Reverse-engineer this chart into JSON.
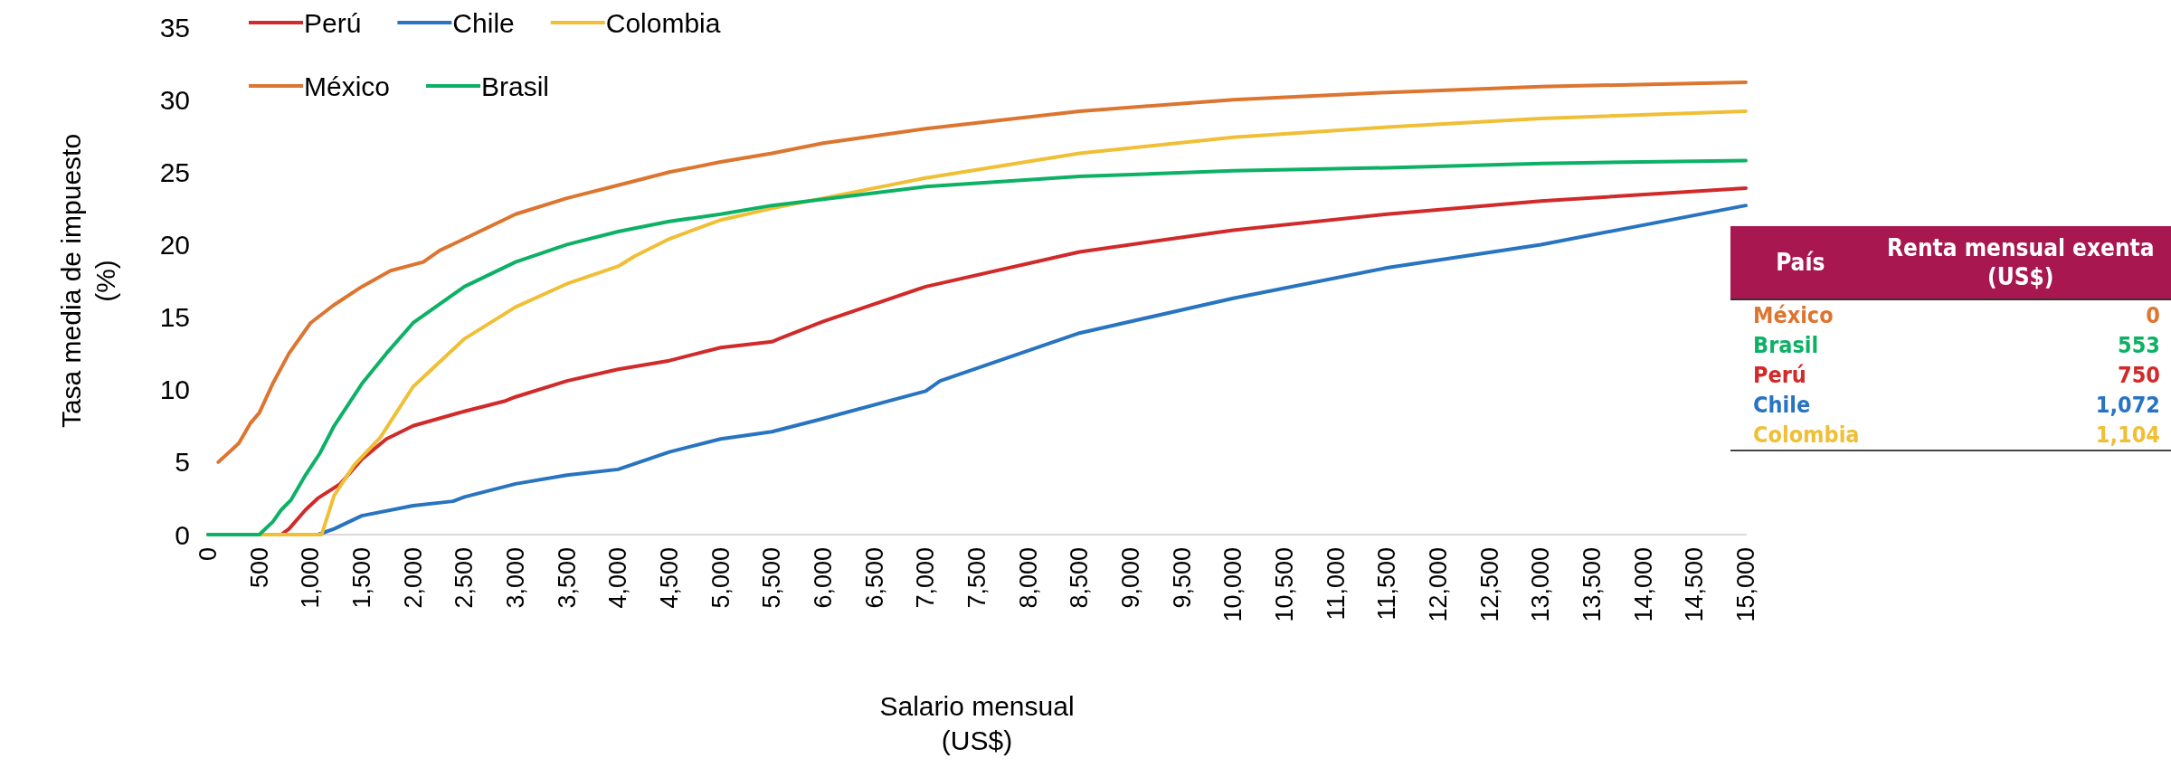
{
  "chart_data": [
    {
      "type": "line",
      "xlabel": "Salario mensual (US$)",
      "ylabel": "Tasa media de impuesto (%)",
      "legend": "top left",
      "grid": false,
      "marker": "none",
      "line_style": "solid",
      "xlim": [
        0,
        15000
      ],
      "ylim": [
        0,
        35
      ],
      "yticks": [
        0,
        5,
        10,
        15,
        20,
        25,
        30,
        35
      ],
      "xticks": [
        0,
        500,
        {
          "value": 1000,
          "label": "1,000"
        },
        {
          "value": 1500,
          "label": "1,500"
        },
        {
          "value": 2000,
          "label": "2,000"
        },
        {
          "value": 2500,
          "label": "2,500"
        },
        {
          "value": 3000,
          "label": "3,000"
        },
        {
          "value": 3500,
          "label": "3,500"
        },
        {
          "value": 4000,
          "label": "4,000"
        },
        {
          "value": 4500,
          "label": "4,500"
        },
        {
          "value": 5000,
          "label": "5,000"
        },
        {
          "value": 5500,
          "label": "5,500"
        },
        {
          "value": 6000,
          "label": "6,000"
        },
        {
          "value": 6500,
          "label": "6,500"
        },
        {
          "value": 7000,
          "label": "7,000"
        },
        {
          "value": 7500,
          "label": "7,500"
        },
        {
          "value": 8000,
          "label": "8,000"
        },
        {
          "value": 8500,
          "label": "8,500"
        },
        {
          "value": 9000,
          "label": "9,000"
        },
        {
          "value": 9500,
          "label": "9,500"
        },
        {
          "value": 10000,
          "label": "10,000"
        },
        {
          "value": 10500,
          "label": "10,500"
        },
        {
          "value": 11000,
          "label": "11,000"
        },
        {
          "value": 11500,
          "label": "11,500"
        },
        {
          "value": 12000,
          "label": "12,000"
        },
        {
          "value": 12500,
          "label": "12,500"
        },
        {
          "value": 13000,
          "label": "13,000"
        },
        {
          "value": 13500,
          "label": "13,500"
        },
        {
          "value": 14000,
          "label": "14,000"
        },
        {
          "value": 14500,
          "label": "14,500"
        },
        {
          "value": 15000,
          "label": "15,000"
        }
      ],
      "series": [
        {
          "name": "Perú",
          "color": "#d02a2a",
          "x": [
            0,
            500,
            713,
            790,
            950,
            1070,
            1290,
            1500,
            1740,
            2000,
            2500,
            2890,
            3000,
            3500,
            4000,
            4500,
            5000,
            5500,
            5600,
            6000,
            7000,
            8500,
            10000,
            11500,
            13000,
            15000
          ],
          "values": [
            0,
            0,
            0,
            0.4,
            1.7,
            2.5,
            3.5,
            5.2,
            6.6,
            7.5,
            8.5,
            9.2,
            9.5,
            10.6,
            11.4,
            12.0,
            12.9,
            13.3,
            13.6,
            14.7,
            17.1,
            19.5,
            21.0,
            22.1,
            23.0,
            23.9
          ]
        },
        {
          "name": "Chile",
          "color": "#2874c0",
          "x": [
            1000,
            1072,
            1230,
            1500,
            2000,
            2390,
            2500,
            3000,
            3500,
            4000,
            4500,
            5000,
            5500,
            6000,
            7000,
            7140,
            8500,
            10000,
            11500,
            13000,
            15000
          ],
          "values": [
            0,
            0,
            0.4,
            1.3,
            2.0,
            2.3,
            2.6,
            3.5,
            4.1,
            4.5,
            5.7,
            6.6,
            7.1,
            8.0,
            9.9,
            10.6,
            13.9,
            16.3,
            18.4,
            20.0,
            22.7
          ]
        },
        {
          "name": "Colombia",
          "color": "#f0bf36",
          "x": [
            0,
            500,
            1000,
            1108,
            1230,
            1425,
            1680,
            2000,
            2500,
            3000,
            3500,
            4000,
            4160,
            4500,
            5000,
            5500,
            7000,
            8500,
            10000,
            11500,
            13000,
            15000
          ],
          "values": [
            0,
            0,
            0,
            0,
            2.7,
            4.8,
            6.7,
            10.2,
            13.5,
            15.7,
            17.3,
            18.5,
            19.2,
            20.4,
            21.7,
            22.5,
            24.6,
            26.3,
            27.4,
            28.1,
            28.7,
            29.2
          ]
        },
        {
          "name": "México",
          "color": "#dc7530",
          "x": [
            100,
            300,
            415,
            500,
            630,
            790,
            1000,
            1220,
            1500,
            1780,
            2100,
            2260,
            2500,
            3000,
            3500,
            4000,
            4500,
            5000,
            5500,
            6000,
            6500,
            7000,
            8500,
            10000,
            11500,
            13000,
            15000
          ],
          "values": [
            5.0,
            6.3,
            7.7,
            8.4,
            10.4,
            12.5,
            14.6,
            15.8,
            17.1,
            18.2,
            18.8,
            19.6,
            20.4,
            22.1,
            23.2,
            24.1,
            25.0,
            25.7,
            26.3,
            27.0,
            27.5,
            28.0,
            29.2,
            30.0,
            30.5,
            30.9,
            31.2
          ]
        },
        {
          "name": "Brasil",
          "color": "#0db166",
          "x": [
            0,
            500,
            633,
            713,
            810,
            950,
            1090,
            1230,
            1500,
            1740,
            2000,
            2500,
            3000,
            3500,
            4000,
            4500,
            5000,
            5500,
            7000,
            8500,
            10000,
            11500,
            13000,
            15000
          ],
          "values": [
            0,
            0,
            0.9,
            1.7,
            2.4,
            4.1,
            5.6,
            7.5,
            10.4,
            12.5,
            14.6,
            17.1,
            18.8,
            20.0,
            20.9,
            21.6,
            22.1,
            22.7,
            24.0,
            24.7,
            25.1,
            25.3,
            25.6,
            25.8
          ]
        }
      ]
    },
    {
      "type": "other",
      "xlabel": "País",
      "ylabel": "Renta mensual exenta (US$)",
      "categories": [
        "México",
        "Brasil",
        "Perú",
        "Chile",
        "Colombia"
      ],
      "value_labels": [
        "0",
        "553",
        "750",
        "1,072",
        "1,104"
      ],
      "colors": [
        "#dc7530",
        "#0db166",
        "#d02a2a",
        "#2874c0",
        "#f0bf36"
      ]
    }
  ]
}
